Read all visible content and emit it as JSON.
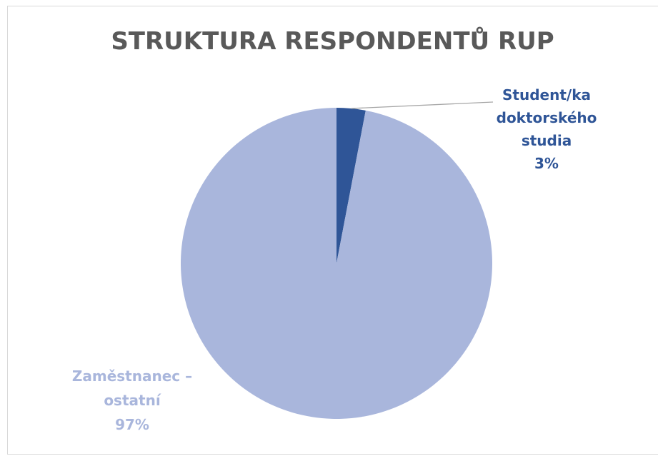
{
  "chart_data": {
    "type": "pie",
    "title": "STRUKTURA RESPONDENTŮ RUP",
    "categories": [
      "Student/ka doktorského studia",
      "Zaměstnanec – ostatní"
    ],
    "values": [
      3,
      97
    ],
    "value_labels": [
      "3%",
      "97%"
    ],
    "colors": [
      "#2f5597",
      "#a9b6dc"
    ]
  }
}
